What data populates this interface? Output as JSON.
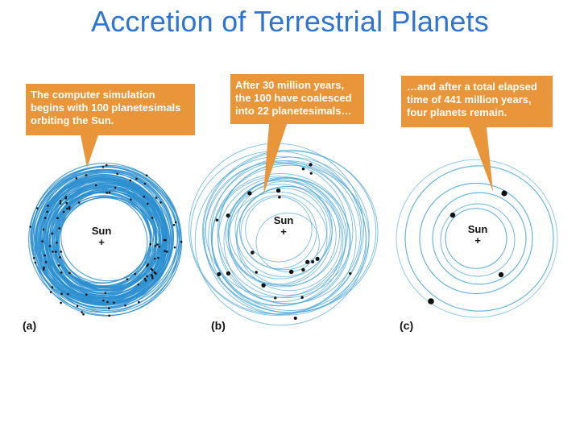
{
  "title": "Accretion of Terrestrial Planets",
  "colors": {
    "title": "#2e74d0",
    "callout_fill": "#e9953a",
    "orbit_dense": "#2b8fd0",
    "orbit_light": "#4aa6d6",
    "body": "#111111"
  },
  "panels": [
    {
      "label": "(a)",
      "sun_label": "Sun",
      "callout_lines": [
        "The computer simulation",
        "begins with 100 planetesimals",
        "orbiting the Sun."
      ]
    },
    {
      "label": "(b)",
      "sun_label": "Sun",
      "callout_lines": [
        "After 30 million years,",
        "the 100 have coalesced",
        "into 22 planetesimals…"
      ]
    },
    {
      "label": "(c)",
      "sun_label": "Sun",
      "callout_lines": [
        "…and after a total elapsed",
        "time of 441 million years,",
        "four planets remain."
      ]
    }
  ]
}
